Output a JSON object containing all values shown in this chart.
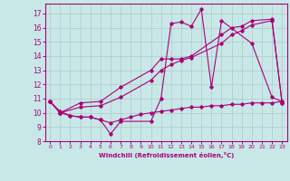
{
  "background_color": "#c8e8e8",
  "grid_color": "#b0c8c8",
  "line_color": "#aa0077",
  "xlabel": "Windchill (Refroidissement éolien,°C)",
  "xlim": [
    -0.5,
    23.5
  ],
  "ylim": [
    8,
    17.7
  ],
  "yticks": [
    8,
    9,
    10,
    11,
    12,
    13,
    14,
    15,
    16,
    17
  ],
  "xticks": [
    0,
    1,
    2,
    3,
    4,
    5,
    6,
    7,
    8,
    9,
    10,
    11,
    12,
    13,
    14,
    15,
    16,
    17,
    18,
    19,
    20,
    21,
    22,
    23
  ],
  "series": [
    {
      "x": [
        0,
        1,
        2,
        3,
        4,
        5,
        6,
        7,
        10,
        11,
        12,
        13,
        14,
        15,
        16,
        17,
        20,
        22,
        23
      ],
      "y": [
        10.8,
        10.1,
        9.8,
        9.7,
        9.7,
        9.5,
        8.5,
        9.4,
        9.4,
        11.0,
        16.3,
        16.4,
        16.1,
        17.3,
        11.8,
        16.5,
        14.9,
        11.1,
        10.8
      ]
    },
    {
      "x": [
        0,
        1,
        2,
        3,
        4,
        5,
        6,
        7,
        8,
        9,
        10,
        11,
        12,
        13,
        14,
        15,
        16,
        17,
        18,
        19,
        20,
        21,
        22,
        23
      ],
      "y": [
        10.8,
        10.0,
        9.8,
        9.7,
        9.7,
        9.5,
        9.3,
        9.5,
        9.7,
        9.9,
        10.0,
        10.1,
        10.2,
        10.3,
        10.4,
        10.4,
        10.5,
        10.5,
        10.6,
        10.6,
        10.7,
        10.7,
        10.7,
        10.8
      ]
    },
    {
      "x": [
        0,
        1,
        3,
        5,
        7,
        10,
        11,
        12,
        13,
        14,
        17,
        18,
        19,
        20,
        22,
        23
      ],
      "y": [
        10.8,
        10.0,
        10.7,
        10.8,
        11.8,
        13.0,
        13.8,
        13.8,
        13.8,
        14.0,
        15.5,
        16.0,
        16.1,
        16.5,
        16.6,
        10.7
      ]
    },
    {
      "x": [
        0,
        1,
        3,
        5,
        7,
        10,
        11,
        12,
        13,
        14,
        17,
        18,
        19,
        20,
        22,
        23
      ],
      "y": [
        10.8,
        10.0,
        10.4,
        10.5,
        11.1,
        12.3,
        13.0,
        13.4,
        13.7,
        13.9,
        14.9,
        15.5,
        15.8,
        16.2,
        16.5,
        10.7
      ]
    }
  ]
}
